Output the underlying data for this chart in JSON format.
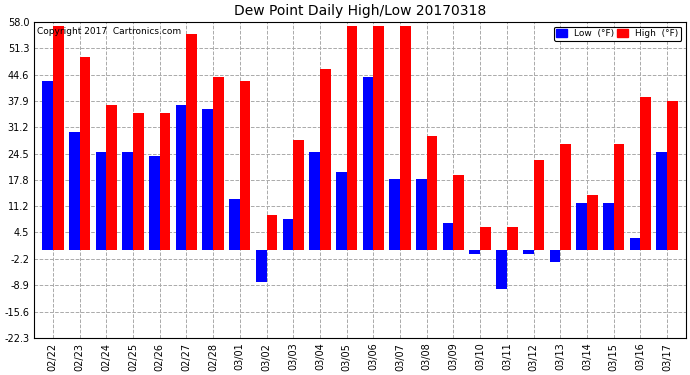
{
  "title": "Dew Point Daily High/Low 20170318",
  "copyright": "Copyright 2017  Cartronics.com",
  "dates": [
    "02/22",
    "02/23",
    "02/24",
    "02/25",
    "02/26",
    "02/27",
    "02/28",
    "03/01",
    "03/02",
    "03/03",
    "03/04",
    "03/05",
    "03/06",
    "03/07",
    "03/08",
    "03/09",
    "03/10",
    "03/11",
    "03/12",
    "03/13",
    "03/14",
    "03/15",
    "03/16",
    "03/17"
  ],
  "low_values": [
    43,
    30,
    25,
    25,
    24,
    37,
    36,
    13,
    -8,
    8,
    25,
    20,
    44,
    18,
    18,
    7,
    -1,
    -10,
    -1,
    -3,
    12,
    12,
    3,
    25
  ],
  "high_values": [
    57,
    49,
    37,
    35,
    35,
    55,
    44,
    43,
    9,
    28,
    46,
    57,
    57,
    57,
    29,
    19,
    6,
    6,
    23,
    27,
    14,
    27,
    39,
    38
  ],
  "low_color": "#0000ff",
  "high_color": "#ff0000",
  "ylim": [
    -22.3,
    58.0
  ],
  "yticks": [
    -22.3,
    -15.6,
    -8.9,
    -2.2,
    4.5,
    11.2,
    17.8,
    24.5,
    31.2,
    37.9,
    44.6,
    51.3,
    58.0
  ],
  "background_color": "#ffffff",
  "grid_color": "#aaaaaa",
  "legend_low_label": "Low  (°F)",
  "legend_high_label": "High  (°F)"
}
